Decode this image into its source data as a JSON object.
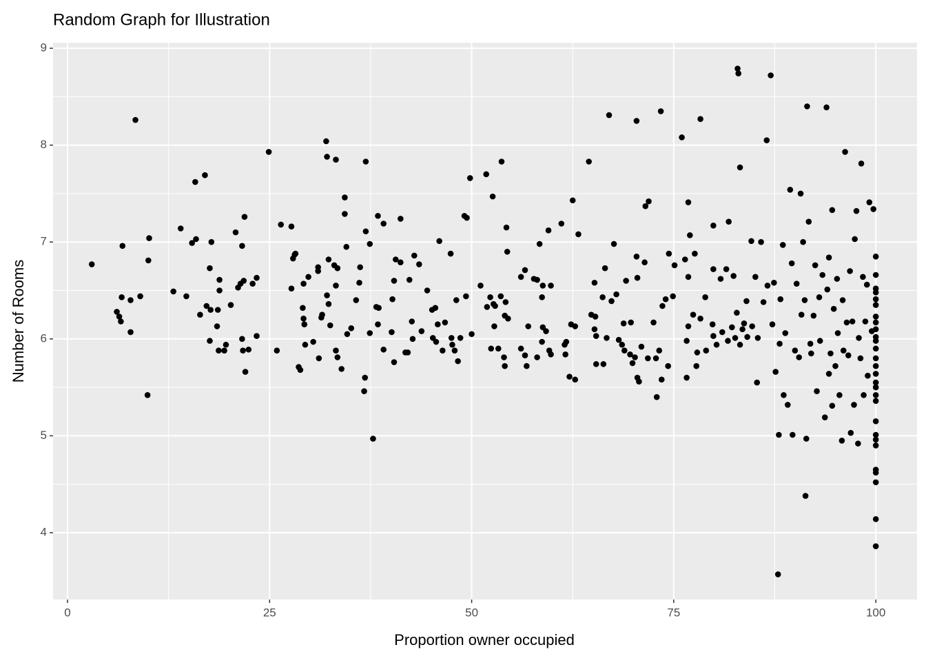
{
  "chart_data": {
    "type": "scatter",
    "title": "Random Graph for Illustration",
    "x_label": "Proportion owner occupied",
    "y_label": "Number of Rooms",
    "xlim": [
      -1.79,
      105.1
    ],
    "ylim": [
      3.31,
      9.057
    ],
    "xticks": [
      0,
      25,
      50,
      75,
      100
    ],
    "yticks": [
      4,
      5,
      6,
      7,
      8,
      9
    ],
    "grid": true,
    "color": "#000000",
    "x": [
      3.0,
      6.1,
      6.4,
      6.6,
      6.7,
      6.8,
      7.8,
      7.8,
      8.4,
      9.0,
      9.9,
      10.1,
      10.0,
      13.1,
      14.0,
      14.7,
      15.4,
      15.9,
      15.8,
      16.4,
      17.0,
      17.2,
      17.6,
      17.7,
      17.6,
      17.8,
      18.5,
      18.6,
      18.7,
      18.8,
      18.8,
      19.4,
      19.6,
      20.2,
      20.8,
      21.1,
      21.4,
      21.6,
      21.6,
      21.7,
      21.9,
      21.8,
      22.0,
      22.4,
      22.9,
      23.4,
      23.4,
      24.9,
      25.9,
      26.4,
      27.7,
      27.7,
      27.9,
      28.1,
      28.2,
      28.6,
      28.8,
      29.1,
      29.2,
      29.2,
      29.3,
      29.4,
      29.8,
      30.4,
      31.0,
      31.0,
      31.1,
      31.4,
      31.5,
      32.0,
      32.1,
      32.1,
      32.3,
      32.3,
      32.5,
      33.0,
      33.2,
      33.2,
      33.4,
      33.2,
      33.4,
      33.9,
      34.3,
      34.3,
      34.5,
      34.6,
      35.1,
      35.7,
      36.1,
      36.2,
      36.7,
      36.8,
      36.9,
      36.9,
      37.4,
      37.4,
      37.8,
      38.2,
      38.5,
      38.4,
      38.4,
      39.1,
      39.1,
      40.1,
      40.2,
      40.4,
      40.4,
      40.6,
      41.2,
      41.2,
      41.8,
      42.1,
      42.3,
      42.6,
      42.7,
      42.9,
      43.5,
      43.8,
      44.5,
      45.1,
      45.2,
      45.5,
      45.6,
      45.8,
      46.0,
      46.4,
      46.7,
      47.4,
      47.5,
      47.6,
      47.9,
      48.1,
      48.3,
      48.6,
      49.1,
      49.3,
      49.4,
      49.8,
      50.0,
      51.1,
      51.8,
      51.9,
      52.3,
      52.4,
      52.6,
      52.7,
      52.8,
      52.9,
      53.3,
      53.6,
      53.7,
      54.0,
      54.1,
      54.2,
      54.1,
      54.3,
      54.4,
      54.5,
      56.1,
      56.1,
      56.6,
      56.6,
      56.8,
      57.0,
      57.7,
      58.1,
      58.1,
      58.4,
      58.7,
      58.7,
      58.8,
      58.8,
      59.2,
      59.5,
      59.6,
      59.8,
      59.8,
      61.1,
      61.5,
      61.6,
      61.7,
      62.1,
      62.3,
      62.5,
      62.8,
      62.8,
      63.2,
      64.5,
      64.8,
      65.2,
      65.2,
      65.4,
      65.3,
      65.4,
      66.3,
      66.2,
      66.5,
      66.7,
      67.0,
      67.3,
      67.6,
      67.9,
      68.2,
      68.6,
      68.9,
      68.8,
      69.1,
      69.6,
      69.7,
      69.9,
      70.2,
      70.4,
      70.5,
      70.5,
      70.4,
      70.7,
      71.0,
      71.4,
      71.5,
      71.8,
      71.9,
      72.5,
      72.8,
      72.9,
      73.2,
      73.4,
      73.5,
      73.6,
      74.0,
      74.3,
      74.4,
      74.9,
      75.1,
      76.0,
      76.4,
      76.6,
      76.6,
      76.8,
      76.8,
      76.8,
      77.0,
      77.4,
      77.6,
      77.8,
      77.9,
      78.3,
      78.3,
      78.9,
      79.0,
      79.8,
      79.9,
      79.9,
      79.9,
      80.3,
      80.8,
      81.0,
      81.5,
      81.7,
      81.8,
      82.2,
      82.4,
      82.6,
      82.8,
      82.9,
      83.0,
      83.2,
      83.2,
      83.5,
      83.7,
      84.0,
      84.1,
      84.6,
      84.7,
      85.1,
      85.3,
      85.4,
      85.8,
      86.1,
      86.5,
      86.6,
      87.0,
      87.2,
      87.4,
      87.6,
      87.9,
      88.0,
      88.1,
      88.2,
      88.5,
      88.6,
      88.8,
      89.1,
      89.4,
      89.6,
      89.7,
      90.0,
      90.2,
      90.5,
      90.7,
      90.8,
      91.0,
      91.2,
      91.3,
      91.4,
      91.5,
      91.7,
      91.9,
      92.0,
      92.3,
      92.5,
      92.7,
      93.0,
      93.1,
      93.4,
      93.7,
      93.9,
      94.0,
      94.2,
      94.2,
      94.4,
      94.6,
      94.6,
      94.8,
      95.0,
      95.2,
      95.3,
      95.5,
      95.8,
      95.9,
      96.0,
      96.2,
      96.4,
      96.6,
      96.8,
      96.9,
      97.1,
      97.3,
      97.4,
      97.6,
      97.8,
      97.9,
      98.1,
      98.2,
      98.4,
      98.5,
      98.7,
      98.9,
      99.0,
      99.2,
      99.5,
      99.7,
      100,
      100,
      100,
      100,
      100,
      100,
      100,
      100,
      100,
      100,
      100,
      100,
      100,
      100,
      100,
      100,
      100,
      100,
      100,
      100,
      100,
      100,
      100,
      100,
      100,
      100,
      100,
      100
    ],
    "values": [
      6.77,
      6.28,
      6.23,
      6.18,
      6.43,
      6.96,
      6.07,
      6.4,
      8.26,
      6.44,
      5.42,
      7.04,
      6.81,
      6.49,
      7.14,
      6.44,
      6.99,
      7.03,
      7.62,
      6.25,
      7.69,
      6.34,
      6.73,
      6.3,
      5.98,
      7.0,
      6.13,
      6.3,
      5.88,
      6.61,
      6.5,
      5.88,
      5.94,
      6.35,
      7.1,
      6.53,
      6.57,
      6.96,
      6.0,
      5.88,
      7.26,
      6.6,
      5.66,
      5.89,
      6.57,
      6.63,
      6.03,
      7.93,
      5.88,
      7.18,
      7.16,
      6.52,
      6.83,
      6.87,
      6.88,
      5.71,
      5.68,
      6.32,
      6.57,
      6.21,
      6.15,
      5.94,
      6.64,
      5.97,
      6.74,
      6.7,
      5.8,
      6.22,
      6.25,
      8.04,
      7.88,
      6.45,
      6.82,
      6.36,
      6.14,
      6.76,
      7.85,
      6.55,
      6.73,
      5.88,
      5.81,
      5.69,
      7.46,
      7.29,
      6.95,
      6.05,
      6.11,
      6.4,
      6.58,
      6.74,
      5.46,
      5.6,
      7.83,
      7.11,
      6.98,
      6.06,
      4.97,
      6.33,
      6.32,
      7.27,
      6.15,
      7.19,
      5.89,
      6.07,
      6.41,
      6.6,
      5.76,
      6.82,
      6.79,
      7.24,
      5.86,
      5.86,
      6.61,
      6.18,
      6.0,
      6.86,
      6.77,
      6.08,
      6.5,
      6.3,
      6.01,
      6.32,
      5.97,
      6.15,
      7.01,
      5.88,
      6.17,
      6.88,
      6.01,
      5.94,
      5.88,
      6.4,
      5.77,
      6.01,
      7.27,
      6.44,
      7.25,
      7.66,
      6.05,
      6.55,
      7.7,
      6.33,
      6.43,
      5.9,
      7.47,
      6.36,
      6.13,
      6.34,
      5.9,
      6.44,
      7.83,
      5.81,
      6.24,
      6.38,
      5.72,
      7.15,
      6.9,
      6.21,
      6.64,
      5.9,
      6.71,
      5.83,
      5.72,
      6.13,
      6.62,
      6.61,
      5.81,
      6.98,
      5.97,
      6.43,
      6.12,
      6.55,
      6.08,
      7.12,
      5.88,
      5.84,
      6.55,
      7.19,
      5.94,
      5.84,
      5.97,
      5.61,
      6.15,
      7.43,
      5.58,
      6.13,
      7.08,
      7.83,
      6.25,
      6.58,
      6.1,
      6.03,
      6.23,
      5.74,
      5.74,
      6.43,
      6.73,
      6.01,
      8.31,
      6.39,
      6.98,
      6.46,
      5.99,
      5.94,
      5.88,
      6.16,
      6.6,
      5.84,
      6.17,
      5.75,
      5.81,
      8.25,
      6.63,
      5.6,
      6.85,
      5.56,
      5.92,
      6.79,
      7.37,
      5.8,
      7.42,
      6.17,
      5.8,
      5.4,
      5.88,
      8.35,
      5.58,
      6.34,
      6.41,
      5.72,
      6.88,
      6.44,
      6.76,
      8.08,
      6.82,
      5.98,
      5.6,
      7.41,
      6.64,
      6.13,
      7.07,
      6.25,
      6.88,
      5.72,
      5.86,
      8.27,
      6.21,
      6.43,
      5.88,
      6.15,
      7.17,
      6.72,
      6.03,
      5.94,
      6.62,
      6.07,
      6.72,
      5.98,
      7.21,
      6.12,
      6.65,
      6.01,
      6.27,
      8.79,
      8.74,
      7.77,
      5.94,
      6.1,
      6.16,
      6.39,
      6.02,
      7.01,
      6.13,
      6.64,
      5.55,
      6.01,
      7.0,
      6.38,
      8.05,
      6.55,
      8.72,
      6.15,
      6.58,
      5.66,
      3.57,
      5.01,
      5.95,
      6.41,
      6.97,
      5.42,
      6.06,
      5.32,
      7.54,
      6.78,
      5.01,
      5.88,
      6.57,
      5.81,
      7.5,
      6.25,
      7.0,
      6.4,
      4.38,
      4.97,
      8.4,
      7.21,
      5.95,
      5.85,
      6.24,
      6.76,
      5.46,
      6.43,
      5.98,
      6.66,
      5.19,
      8.39,
      6.51,
      6.84,
      5.64,
      5.85,
      7.33,
      5.31,
      6.31,
      5.72,
      6.62,
      6.06,
      5.42,
      4.95,
      6.4,
      5.88,
      7.93,
      6.17,
      5.83,
      6.7,
      5.03,
      6.18,
      5.32,
      7.03,
      7.32,
      4.92,
      6.01,
      5.8,
      7.81,
      6.64,
      5.42,
      6.18,
      6.56,
      5.62,
      7.41,
      6.08,
      7.34,
      6.85,
      6.66,
      6.52,
      6.48,
      6.41,
      6.35,
      6.23,
      6.17,
      6.1,
      6.02,
      5.98,
      5.9,
      5.8,
      5.72,
      5.64,
      5.55,
      5.5,
      5.42,
      5.36,
      5.15,
      5.01,
      4.96,
      4.9,
      4.65,
      4.62,
      4.52,
      4.14,
      3.86
    ]
  }
}
